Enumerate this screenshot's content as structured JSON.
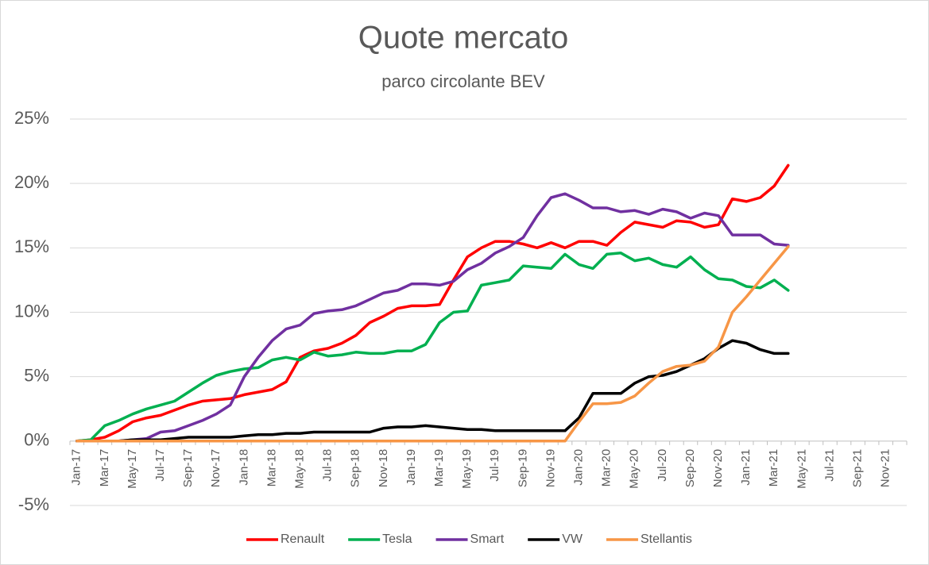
{
  "chart_data": {
    "type": "line",
    "title": "Quote mercato",
    "subtitle": "parco circolante BEV",
    "categories": [
      "Jan-17",
      null,
      "Mar-17",
      null,
      "May-17",
      null,
      "Jul-17",
      null,
      "Sep-17",
      null,
      "Nov-17",
      null,
      "Jan-18",
      null,
      "Mar-18",
      null,
      "May-18",
      null,
      "Jul-18",
      null,
      "Sep-18",
      null,
      "Nov-18",
      null,
      "Jan-19",
      null,
      "Mar-19",
      null,
      "May-19",
      null,
      "Jul-19",
      null,
      "Sep-19",
      null,
      "Nov-19",
      null,
      "Jan-20",
      null,
      "Mar-20",
      null,
      "May-20",
      null,
      "Jul-20",
      null,
      "Sep-20",
      null,
      "Nov-20",
      null,
      "Jan-21",
      null,
      "Mar-21",
      null,
      "May-21",
      null,
      "Jul-21",
      null,
      "Sep-21",
      null,
      "Nov-21",
      null
    ],
    "ylim": [
      -5,
      25
    ],
    "yticks": [
      {
        "value": -5,
        "label": "-5%"
      },
      {
        "value": 0,
        "label": "0%"
      },
      {
        "value": 5,
        "label": "5%"
      },
      {
        "value": 10,
        "label": "10%"
      },
      {
        "value": 15,
        "label": "15%"
      },
      {
        "value": 20,
        "label": "20%"
      },
      {
        "value": 25,
        "label": "25%"
      }
    ],
    "grid": true,
    "legend": "bottom",
    "series": [
      {
        "name": "Renault",
        "color": "#ff0000",
        "values": [
          0,
          0.1,
          0.3,
          0.8,
          1.5,
          1.8,
          2.0,
          2.4,
          2.8,
          3.1,
          3.2,
          3.3,
          3.6,
          3.8,
          4.0,
          4.6,
          6.5,
          7.0,
          7.2,
          7.6,
          8.2,
          9.2,
          9.7,
          10.3,
          10.5,
          10.5,
          10.6,
          12.5,
          14.3,
          15.0,
          15.5,
          15.5,
          15.3,
          15.0,
          15.4,
          15.0,
          15.5,
          15.5,
          15.2,
          16.2,
          17.0,
          16.8,
          16.6,
          17.1,
          17.0,
          16.6,
          16.8,
          18.8,
          18.6,
          18.9,
          19.8,
          21.4,
          null,
          null,
          null,
          null,
          null,
          null,
          null,
          null
        ]
      },
      {
        "name": "Tesla",
        "color": "#00b050",
        "values": [
          0,
          0.1,
          1.2,
          1.6,
          2.1,
          2.5,
          2.8,
          3.1,
          3.8,
          4.5,
          5.1,
          5.4,
          5.6,
          5.7,
          6.3,
          6.5,
          6.3,
          6.9,
          6.6,
          6.7,
          6.9,
          6.8,
          6.8,
          7.0,
          7.0,
          7.5,
          9.2,
          10.0,
          10.1,
          12.1,
          12.3,
          12.5,
          13.6,
          13.5,
          13.4,
          14.5,
          13.7,
          13.4,
          14.5,
          14.6,
          14.0,
          14.2,
          13.7,
          13.5,
          14.3,
          13.3,
          12.6,
          12.5,
          12.0,
          11.9,
          12.5,
          11.7,
          null,
          null,
          null,
          null,
          null,
          null,
          null,
          null
        ]
      },
      {
        "name": "Smart",
        "color": "#7030a0",
        "values": [
          0,
          0,
          0,
          0,
          0.1,
          0.2,
          0.7,
          0.8,
          1.2,
          1.6,
          2.1,
          2.8,
          5.0,
          6.5,
          7.8,
          8.7,
          9.0,
          9.9,
          10.1,
          10.2,
          10.5,
          11.0,
          11.5,
          11.7,
          12.2,
          12.2,
          12.1,
          12.4,
          13.3,
          13.8,
          14.6,
          15.1,
          15.8,
          17.5,
          18.9,
          19.2,
          18.7,
          18.1,
          18.1,
          17.8,
          17.9,
          17.6,
          18.0,
          17.8,
          17.3,
          17.7,
          17.5,
          16.0,
          16.0,
          16.0,
          15.3,
          15.2,
          null,
          null,
          null,
          null,
          null,
          null,
          null,
          null
        ]
      },
      {
        "name": "VW",
        "color": "#000000",
        "values": [
          0,
          0,
          0,
          0,
          0.1,
          0.1,
          0.1,
          0.2,
          0.3,
          0.3,
          0.3,
          0.3,
          0.4,
          0.5,
          0.5,
          0.6,
          0.6,
          0.7,
          0.7,
          0.7,
          0.7,
          0.7,
          1.0,
          1.1,
          1.1,
          1.2,
          1.1,
          1.0,
          0.9,
          0.9,
          0.8,
          0.8,
          0.8,
          0.8,
          0.8,
          0.8,
          1.8,
          3.7,
          3.7,
          3.7,
          4.5,
          5.0,
          5.1,
          5.4,
          5.9,
          6.4,
          7.2,
          7.8,
          7.6,
          7.1,
          6.8,
          6.8,
          null,
          null,
          null,
          null,
          null,
          null,
          null,
          null
        ]
      },
      {
        "name": "Stellantis",
        "color": "#f79646",
        "values": [
          0,
          0,
          0,
          0,
          0,
          0,
          0,
          0,
          0,
          0,
          0,
          0,
          0,
          0,
          0,
          0,
          0,
          0,
          0,
          0,
          0,
          0,
          0,
          0,
          0,
          0,
          0,
          0,
          0,
          0,
          0,
          0,
          0,
          0,
          0,
          0,
          1.5,
          2.9,
          2.9,
          3.0,
          3.5,
          4.5,
          5.4,
          5.8,
          5.9,
          6.2,
          7.3,
          10.0,
          11.2,
          12.5,
          13.8,
          15.1,
          null,
          null,
          null,
          null,
          null,
          null,
          null,
          null
        ]
      }
    ]
  }
}
